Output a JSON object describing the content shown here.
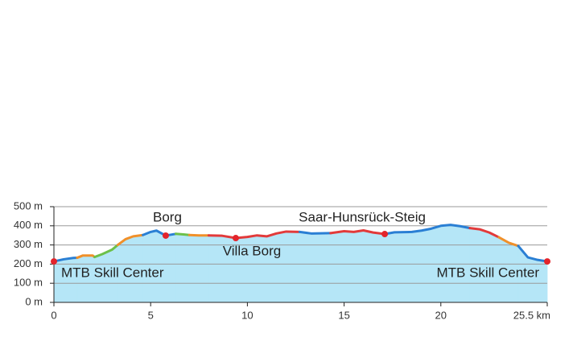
{
  "chart_data": {
    "type": "area",
    "fill": "#b5e6f7",
    "xlim": [
      0,
      25.5
    ],
    "ylim": [
      0,
      500
    ],
    "xticks": [
      0,
      5,
      10,
      15,
      20,
      {
        "value": 25.5,
        "label": "25.5 km"
      }
    ],
    "yticks": [
      {
        "value": 0,
        "label": "0 m"
      },
      {
        "value": 100,
        "label": "100 m"
      },
      {
        "value": 200,
        "label": "200 m"
      },
      {
        "value": 300,
        "label": "300 m"
      },
      {
        "value": 400,
        "label": "400 m"
      },
      {
        "value": 500,
        "label": "500 m"
      }
    ],
    "grid": true,
    "series": [
      {
        "color": "#2a7fd4",
        "x": [
          0,
          0.5,
          1,
          1.2
        ],
        "values": [
          214,
          225,
          232,
          233
        ]
      },
      {
        "color": "#f0902a",
        "x": [
          1.2,
          1.5,
          2.0,
          2.1
        ],
        "values": [
          233,
          245,
          245,
          237
        ]
      },
      {
        "color": "#6cc04a",
        "x": [
          2.1,
          2.5,
          3.0,
          3.3
        ],
        "values": [
          237,
          252,
          275,
          300
        ]
      },
      {
        "color": "#f0902a",
        "x": [
          3.3,
          3.7,
          4.1,
          4.6
        ],
        "values": [
          300,
          330,
          345,
          352
        ]
      },
      {
        "color": "#2a7fd4",
        "x": [
          4.6,
          5.0,
          5.3,
          5.78,
          6.3
        ],
        "values": [
          352,
          368,
          375,
          349,
          358
        ]
      },
      {
        "color": "#6cc04a",
        "x": [
          6.3,
          6.7,
          7.0
        ],
        "values": [
          358,
          355,
          352
        ]
      },
      {
        "color": "#f0902a",
        "x": [
          7.0,
          7.5,
          8.0
        ],
        "values": [
          352,
          350,
          350
        ]
      },
      {
        "color": "#e23a3a",
        "x": [
          8.0,
          8.7,
          9.4,
          10.0,
          10.5,
          11.0,
          11.5,
          12.0,
          12.7
        ],
        "values": [
          350,
          348,
          336,
          342,
          350,
          345,
          360,
          370,
          368
        ]
      },
      {
        "color": "#2a7fd4",
        "x": [
          12.7,
          13.3,
          14.3
        ],
        "values": [
          368,
          360,
          362
        ]
      },
      {
        "color": "#e23a3a",
        "x": [
          14.3,
          15.0,
          15.5,
          16.0,
          16.5,
          17.1
        ],
        "values": [
          362,
          372,
          368,
          376,
          365,
          357
        ]
      },
      {
        "color": "#2a7fd4",
        "x": [
          17.1,
          17.6,
          18.5,
          19.0,
          19.5,
          20.0,
          20.5,
          21.0,
          21.5
        ],
        "values": [
          357,
          366,
          368,
          375,
          385,
          400,
          405,
          398,
          388
        ]
      },
      {
        "color": "#e23a3a",
        "x": [
          21.5,
          22.0,
          22.5,
          23.0
        ],
        "values": [
          388,
          382,
          365,
          340
        ]
      },
      {
        "color": "#f0902a",
        "x": [
          23.0,
          23.5,
          24.0
        ],
        "values": [
          340,
          312,
          295
        ]
      },
      {
        "color": "#2a7fd4",
        "x": [
          24.0,
          24.5,
          25.0,
          25.5
        ],
        "values": [
          295,
          235,
          222,
          214
        ]
      }
    ],
    "points": [
      {
        "label": "MTB Skill Center",
        "x": 0,
        "y": 214
      },
      {
        "label": "Borg",
        "x": 5.78,
        "y": 349
      },
      {
        "label": "Villa Borg",
        "x": 9.4,
        "y": 336
      },
      {
        "label": "Saar-Hunsrück-Steig",
        "x": 17.1,
        "y": 357
      },
      {
        "label": "MTB Skill Center",
        "x": 25.5,
        "y": 214
      }
    ],
    "point_color": "#e3242b"
  }
}
